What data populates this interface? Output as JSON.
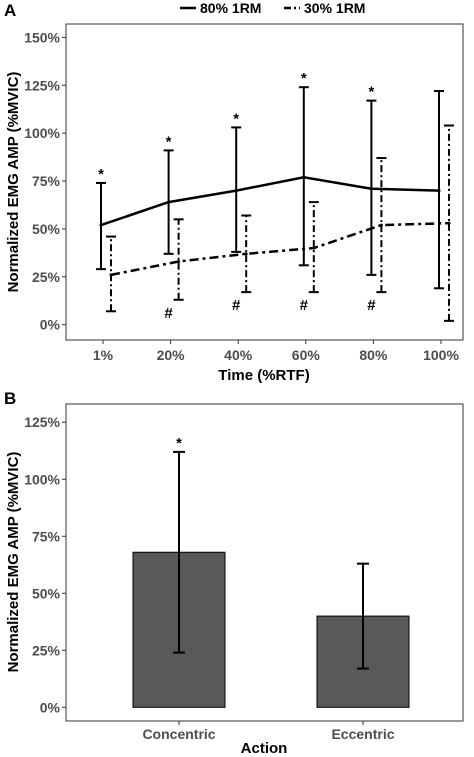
{
  "chart_data": [
    {
      "panel": "A",
      "type": "line",
      "xlabel": "Time (%RTF)",
      "ylabel": "Normalized EMG AMP (%MVIC)",
      "categories": [
        "1%",
        "20%",
        "40%",
        "60%",
        "80%",
        "100%"
      ],
      "y_ticks": [
        "0%",
        "25%",
        "50%",
        "75%",
        "100%",
        "125%",
        "150%"
      ],
      "ylim": [
        0,
        150
      ],
      "grid": false,
      "legend_position": "top",
      "series": [
        {
          "name": "80% 1RM",
          "line_style": "solid",
          "values": [
            52,
            64,
            70,
            77,
            71,
            70
          ],
          "err_low": [
            29,
            37,
            38,
            31,
            26,
            19
          ],
          "err_high": [
            74,
            91,
            103,
            124,
            117,
            122
          ],
          "markers": [
            "*",
            "*",
            "*",
            "*",
            "*",
            ""
          ]
        },
        {
          "name": "30% 1RM",
          "line_style": "dashdot",
          "values": [
            26,
            33,
            37,
            40,
            52,
            53
          ],
          "err_low": [
            7,
            13,
            17,
            17,
            17,
            2
          ],
          "err_high": [
            46,
            55,
            57,
            64,
            87,
            104
          ],
          "markers": [
            "",
            "#",
            "#",
            "#",
            "#",
            ""
          ]
        }
      ]
    },
    {
      "panel": "B",
      "type": "bar",
      "xlabel": "Action",
      "ylabel": "Normalized EMG AMP (%MVIC)",
      "categories": [
        "Concentric",
        "Eccentric"
      ],
      "y_ticks": [
        "0%",
        "25%",
        "50%",
        "75%",
        "100%",
        "125%"
      ],
      "ylim": [
        0,
        125
      ],
      "grid": false,
      "bar_color": "#595959",
      "values": [
        68,
        40
      ],
      "err_low": [
        24,
        17
      ],
      "err_high": [
        112,
        63
      ],
      "markers": [
        "*",
        ""
      ]
    }
  ]
}
